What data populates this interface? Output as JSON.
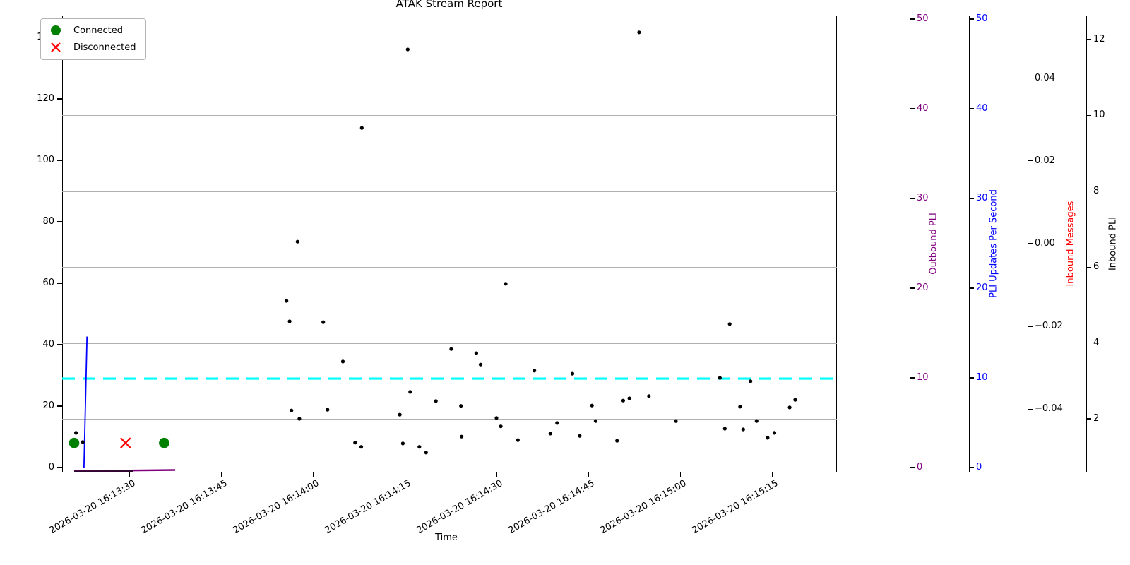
{
  "chart_data": {
    "type": "scatter",
    "title": "ATAK Stream Report",
    "xlabel": "Time",
    "x_tick_labels": [
      "2026-03-20 16:13:30",
      "2026-03-20 16:13:45",
      "2026-03-20 16:14:00",
      "2026-03-20 16:14:15",
      "2026-03-20 16:14:30",
      "2026-03-20 16:14:45",
      "2026-03-20 16:15:00",
      "2026-03-20 16:15:15"
    ],
    "left_axis": {
      "tick_values": [
        0,
        20,
        40,
        60,
        80,
        100,
        120,
        140
      ]
    },
    "right_axes": [
      {
        "name": "outbound-pli",
        "label": "Outbound PLI",
        "label_color": "#800080",
        "tick_color": "#800080",
        "tick_labels": [
          "0",
          "10",
          "20",
          "30",
          "40",
          "50"
        ],
        "tick_values": [
          0,
          10,
          20,
          30,
          40,
          50
        ]
      },
      {
        "name": "pli-updates-per-second",
        "label": "PLI Updates Per Second",
        "label_color": "#0000ff",
        "tick_color": "#0000ff",
        "tick_labels": [
          "0",
          "10",
          "20",
          "30",
          "40",
          "50"
        ],
        "tick_values": [
          0,
          10,
          20,
          30,
          40,
          50
        ]
      },
      {
        "name": "inbound-messages",
        "label": "Inbound Messages",
        "label_color": "#ff0000",
        "tick_color": "#000000",
        "tick_labels": [
          "0.04",
          "0.02",
          "0.00",
          "−0.02",
          "−0.04"
        ],
        "tick_values": [
          0.04,
          0.02,
          0,
          -0.02,
          -0.04
        ]
      },
      {
        "name": "inbound-pli",
        "label": "Inbound PLI",
        "label_color": "#000000",
        "tick_color": "#000000",
        "tick_labels": [
          "12",
          "10",
          "8",
          "6",
          "4",
          "2"
        ],
        "tick_values": [
          12,
          10,
          8,
          6,
          4,
          2
        ]
      }
    ],
    "gridline_values": [
      12,
      10,
      8,
      6,
      4,
      2
    ],
    "legend": {
      "items": [
        {
          "label": "Connected",
          "marker": "circle",
          "color": "#008000"
        },
        {
          "label": "Disconnected",
          "marker": "x",
          "color": "#ff0000"
        }
      ]
    },
    "series": {
      "inbound_pli_points": [
        [
          -8.7,
          1.63
        ],
        [
          -7.6,
          1.39
        ],
        [
          25.7,
          5.11
        ],
        [
          26.2,
          4.57
        ],
        [
          27.5,
          6.67
        ],
        [
          26.5,
          2.22
        ],
        [
          27.8,
          2.0
        ],
        [
          31.7,
          4.55
        ],
        [
          32.4,
          2.24
        ],
        [
          34.9,
          3.51
        ],
        [
          36.9,
          1.37
        ],
        [
          37.9,
          1.26
        ],
        [
          38.0,
          9.67
        ],
        [
          44.2,
          2.11
        ],
        [
          44.7,
          1.35
        ],
        [
          45.5,
          11.74
        ],
        [
          45.9,
          2.71
        ],
        [
          47.4,
          1.26
        ],
        [
          48.5,
          1.11
        ],
        [
          50.1,
          2.47
        ],
        [
          52.6,
          3.84
        ],
        [
          54.2,
          2.34
        ],
        [
          54.3,
          1.53
        ],
        [
          56.7,
          3.73
        ],
        [
          57.4,
          3.43
        ],
        [
          60.0,
          2.02
        ],
        [
          60.7,
          1.8
        ],
        [
          61.5,
          5.56
        ],
        [
          63.5,
          1.44
        ],
        [
          66.2,
          3.27
        ],
        [
          68.8,
          1.61
        ],
        [
          69.9,
          1.89
        ],
        [
          72.4,
          3.19
        ],
        [
          73.6,
          1.55
        ],
        [
          75.6,
          2.35
        ],
        [
          76.2,
          1.94
        ],
        [
          79.7,
          1.42
        ],
        [
          80.7,
          2.48
        ],
        [
          81.7,
          2.54
        ],
        [
          83.3,
          12.19
        ],
        [
          84.9,
          2.6
        ],
        [
          89.3,
          1.94
        ],
        [
          96.5,
          3.08
        ],
        [
          97.3,
          1.74
        ],
        [
          98.1,
          4.5
        ],
        [
          99.8,
          2.32
        ],
        [
          100.3,
          1.72
        ],
        [
          101.5,
          2.99
        ],
        [
          102.5,
          1.94
        ],
        [
          104.3,
          1.5
        ],
        [
          105.4,
          1.63
        ],
        [
          107.9,
          2.3
        ],
        [
          108.8,
          2.5
        ]
      ],
      "connected_times": [
        -9.0,
        5.7
      ],
      "disconnected_times": [
        -0.6
      ],
      "event_marker_value": 8,
      "pli_updates_line": [
        [
          -7.4,
          0
        ],
        [
          -6.9,
          14.6
        ]
      ],
      "outbound_pli_line": [
        [
          -9.0,
          0
        ],
        [
          7.5,
          0
        ]
      ],
      "mean_inbound_pli": 3.06
    },
    "colors": {
      "scatter": "#000000",
      "connected": "#008000",
      "disconnected": "#ff0000",
      "mean_line": "#00ffff",
      "pli_updates": "#0000ff",
      "outbound": "#800080",
      "gridline": "#b0b0b0"
    }
  }
}
